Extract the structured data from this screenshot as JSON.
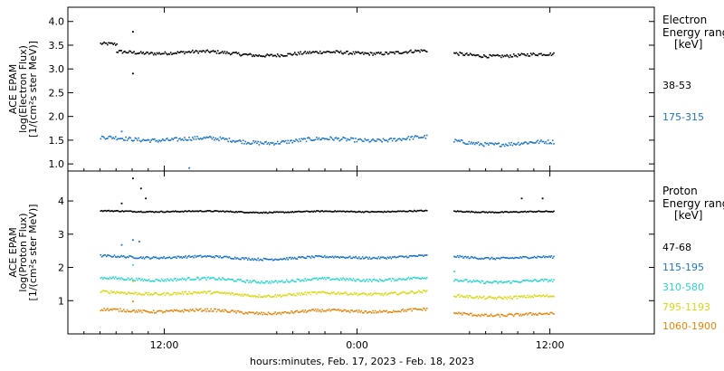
{
  "chart_data": [
    {
      "type": "scatter",
      "panel": "electron",
      "ylabel_lines": [
        "ACE EPAM",
        "log(Electron Flux)",
        "[1/(cm²s ster MeV)]"
      ],
      "ylim": [
        0.85,
        4.3
      ],
      "yticks": [
        "1.0",
        "1.5",
        "2.0",
        "2.5",
        "3.0",
        "3.5",
        "4.0"
      ],
      "ytick_values": [
        1.0,
        1.5,
        2.0,
        2.5,
        3.0,
        3.5,
        4.0
      ],
      "legend_title": [
        "Electron",
        "Energy range",
        "[keV]"
      ],
      "series": [
        {
          "name": "38-53",
          "color": "#000000",
          "base": 3.4,
          "noise": 0.04,
          "segments": [
            [
              2.0,
              3.0,
              3.5
            ],
            [
              3.0,
              22.3,
              3.35
            ],
            [
              24.0,
              30.2,
              3.32
            ]
          ],
          "outliers": [
            [
              4.0,
              3.8
            ],
            [
              4.0,
              2.92
            ]
          ]
        },
        {
          "name": "175-315",
          "color": "#1a75c9",
          "base": 1.5,
          "noise": 0.05,
          "segments": [
            [
              2.0,
              22.3,
              1.52
            ],
            [
              24.0,
              30.2,
              1.47
            ]
          ],
          "outliers": [
            [
              3.3,
              1.7
            ],
            [
              7.5,
              0.93
            ]
          ]
        }
      ]
    },
    {
      "type": "scatter",
      "panel": "proton",
      "ylabel_lines": [
        "ACE EPAM",
        "log(Proton Flux)",
        "[1/(cm²s ster MeV)]"
      ],
      "ylim": [
        0.0,
        4.9
      ],
      "yticks": [
        "1",
        "2",
        "3",
        "4"
      ],
      "ytick_values": [
        1,
        2,
        3,
        4
      ],
      "legend_title": [
        "Proton",
        "Energy range",
        "[keV]"
      ],
      "series": [
        {
          "name": "47-68",
          "color": "#000000",
          "base": 3.7,
          "noise": 0.02,
          "segments": [
            [
              2.0,
              22.3,
              3.7
            ],
            [
              24.0,
              30.2,
              3.7
            ]
          ],
          "outliers": [
            [
              4.0,
              4.7
            ],
            [
              4.5,
              4.4
            ],
            [
              4.8,
              4.1
            ],
            [
              3.3,
              3.95
            ],
            [
              28.2,
              4.1
            ],
            [
              29.5,
              4.1
            ]
          ]
        },
        {
          "name": "115-195",
          "color": "#1a75c9",
          "base": 2.35,
          "noise": 0.04,
          "segments": [
            [
              2.0,
              22.3,
              2.32
            ],
            [
              24.0,
              30.2,
              2.33
            ]
          ],
          "outliers": [
            [
              4.0,
              2.85
            ],
            [
              4.4,
              2.8
            ],
            [
              3.3,
              2.7
            ]
          ]
        },
        {
          "name": "310-580",
          "color": "#2ad6cf",
          "base": 1.7,
          "noise": 0.05,
          "segments": [
            [
              2.0,
              22.3,
              1.65
            ],
            [
              24.0,
              30.2,
              1.62
            ]
          ],
          "outliers": [
            [
              4.0,
              2.1
            ],
            [
              24.0,
              1.9
            ]
          ]
        },
        {
          "name": "795-1193",
          "color": "#d9d90f",
          "base": 1.25,
          "noise": 0.05,
          "segments": [
            [
              2.0,
              22.3,
              1.23
            ],
            [
              24.0,
              30.2,
              1.15
            ]
          ],
          "outliers": [
            [
              4.0,
              1.6
            ]
          ]
        },
        {
          "name": "1060-1900",
          "color": "#e8850c",
          "base": 0.75,
          "noise": 0.05,
          "segments": [
            [
              2.0,
              22.3,
              0.7
            ],
            [
              24.0,
              30.2,
              0.62
            ]
          ],
          "outliers": [
            [
              4.0,
              1.0
            ]
          ]
        }
      ]
    }
  ],
  "xaxis": {
    "xlim_hours": [
      0,
      36.5
    ],
    "ticks": [
      {
        "hours": 6,
        "label": "12:00"
      },
      {
        "hours": 18,
        "label": "0:00"
      },
      {
        "hours": 30,
        "label": "12:00"
      }
    ],
    "label": "hours:minutes, Feb. 17, 2023 - Feb. 18, 2023"
  }
}
